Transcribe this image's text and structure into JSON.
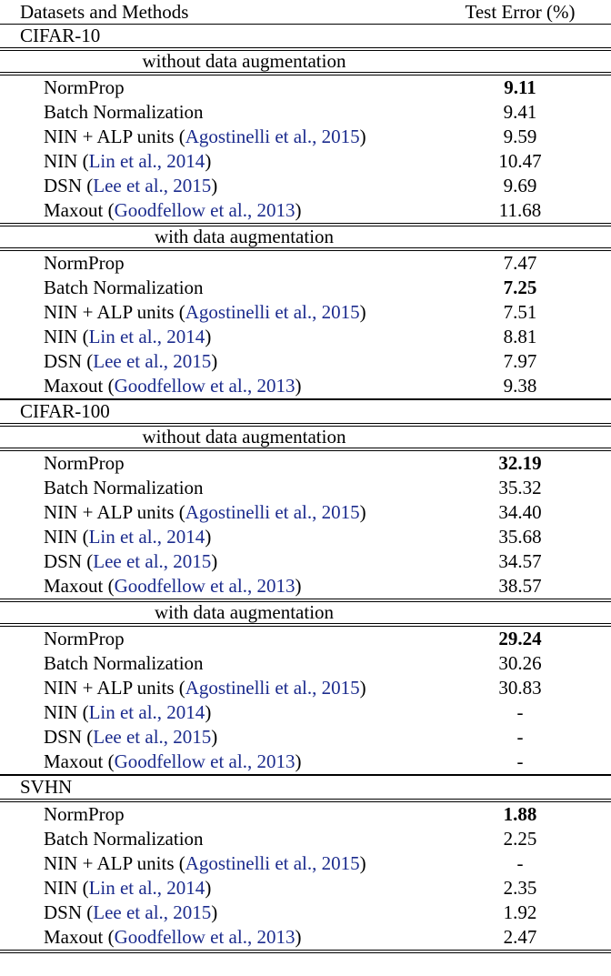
{
  "page": {
    "background_color": "#ffffff",
    "text_color": "#000000",
    "citation_color": "#1b2b8d"
  },
  "header": {
    "col_method": "Datasets and Methods",
    "col_value": "Test Error (%)"
  },
  "sections": [
    {
      "dataset": "CIFAR-10",
      "blocks": [
        {
          "subtitle": "without data augmentation",
          "rows": [
            {
              "pre": "NormProp",
              "cite": "",
              "post": "",
              "value": "9.11",
              "bold": true
            },
            {
              "pre": "Batch Normalization",
              "cite": "",
              "post": "",
              "value": "9.41",
              "bold": false
            },
            {
              "pre": "NIN + ALP units (",
              "cite": "Agostinelli et al., 2015",
              "post": ")",
              "value": "9.59",
              "bold": false
            },
            {
              "pre": "NIN (",
              "cite": "Lin et al., 2014",
              "post": ")",
              "value": "10.47",
              "bold": false
            },
            {
              "pre": "DSN (",
              "cite": "Lee et al., 2015",
              "post": ")",
              "value": "9.69",
              "bold": false
            },
            {
              "pre": "Maxout (",
              "cite": "Goodfellow et al., 2013",
              "post": ")",
              "value": "11.68",
              "bold": false
            }
          ]
        },
        {
          "subtitle": "with data augmentation",
          "rows": [
            {
              "pre": "NormProp",
              "cite": "",
              "post": "",
              "value": "7.47",
              "bold": false
            },
            {
              "pre": "Batch Normalization",
              "cite": "",
              "post": "",
              "value": "7.25",
              "bold": true
            },
            {
              "pre": "NIN + ALP units (",
              "cite": "Agostinelli et al., 2015",
              "post": ")",
              "value": "7.51",
              "bold": false
            },
            {
              "pre": "NIN (",
              "cite": "Lin et al., 2014",
              "post": ")",
              "value": "8.81",
              "bold": false
            },
            {
              "pre": "DSN (",
              "cite": "Lee et al., 2015",
              "post": ")",
              "value": "7.97",
              "bold": false
            },
            {
              "pre": "Maxout (",
              "cite": "Goodfellow et al., 2013",
              "post": ")",
              "value": "9.38",
              "bold": false
            }
          ]
        }
      ]
    },
    {
      "dataset": "CIFAR-100",
      "blocks": [
        {
          "subtitle": "without data augmentation",
          "rows": [
            {
              "pre": "NormProp",
              "cite": "",
              "post": "",
              "value": "32.19",
              "bold": true
            },
            {
              "pre": "Batch Normalization",
              "cite": "",
              "post": "",
              "value": "35.32",
              "bold": false
            },
            {
              "pre": "NIN + ALP units (",
              "cite": "Agostinelli et al., 2015",
              "post": ")",
              "value": "34.40",
              "bold": false
            },
            {
              "pre": "NIN (",
              "cite": "Lin et al., 2014",
              "post": ")",
              "value": "35.68",
              "bold": false
            },
            {
              "pre": "DSN (",
              "cite": "Lee et al., 2015",
              "post": ")",
              "value": "34.57",
              "bold": false
            },
            {
              "pre": "Maxout (",
              "cite": "Goodfellow et al., 2013",
              "post": ")",
              "value": "38.57",
              "bold": false
            }
          ]
        },
        {
          "subtitle": "with data augmentation",
          "rows": [
            {
              "pre": "NormProp",
              "cite": "",
              "post": "",
              "value": "29.24",
              "bold": true
            },
            {
              "pre": "Batch Normalization",
              "cite": "",
              "post": "",
              "value": "30.26",
              "bold": false
            },
            {
              "pre": "NIN + ALP units (",
              "cite": "Agostinelli et al., 2015",
              "post": ")",
              "value": "30.83",
              "bold": false
            },
            {
              "pre": "NIN (",
              "cite": "Lin et al., 2014",
              "post": ")",
              "value": "-",
              "bold": false
            },
            {
              "pre": "DSN (",
              "cite": "Lee et al., 2015",
              "post": ")",
              "value": "-",
              "bold": false
            },
            {
              "pre": "Maxout (",
              "cite": "Goodfellow et al., 2013",
              "post": ")",
              "value": "-",
              "bold": false
            }
          ]
        }
      ]
    },
    {
      "dataset": "SVHN",
      "blocks": [
        {
          "subtitle": "",
          "rows": [
            {
              "pre": "NormProp",
              "cite": "",
              "post": "",
              "value": "1.88",
              "bold": true
            },
            {
              "pre": "Batch Normalization",
              "cite": "",
              "post": "",
              "value": "2.25",
              "bold": false
            },
            {
              "pre": "NIN + ALP units (",
              "cite": "Agostinelli et al., 2015",
              "post": ")",
              "value": "-",
              "bold": false
            },
            {
              "pre": "NIN (",
              "cite": "Lin et al., 2014",
              "post": ")",
              "value": "2.35",
              "bold": false
            },
            {
              "pre": "DSN (",
              "cite": "Lee et al., 2015",
              "post": ")",
              "value": "1.92",
              "bold": false
            },
            {
              "pre": "Maxout (",
              "cite": "Goodfellow et al., 2013",
              "post": ")",
              "value": "2.47",
              "bold": false
            }
          ]
        }
      ]
    }
  ]
}
